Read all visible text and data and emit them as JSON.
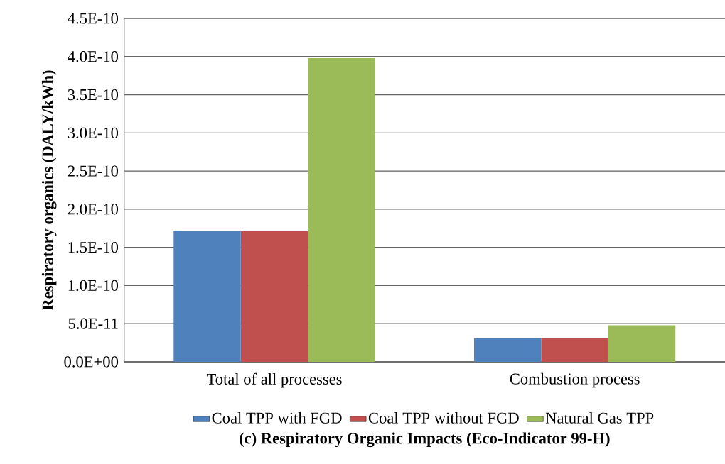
{
  "chart_data": {
    "type": "bar",
    "title": "(c) Respiratory Organic Impacts  (Eco-Indicator 99-H)",
    "ylabel": "Respiratory organics (DALY/kWh)",
    "categories": [
      "Total of all processes",
      "Combustion process"
    ],
    "series": [
      {
        "name": "Coal TPP with FGD",
        "color": "#4f81bd",
        "values": [
          1.72e-10,
          3.1e-11
        ]
      },
      {
        "name": "Coal TPP without FGD",
        "color": "#c0504d",
        "values": [
          1.71e-10,
          3.1e-11
        ]
      },
      {
        "name": "Natural Gas TPP",
        "color": "#9bbb59",
        "values": [
          3.98e-10,
          4.8e-11
        ]
      }
    ],
    "ylim": [
      0,
      4.5e-10
    ],
    "yticks": [
      {
        "value": 0,
        "label": "0.0E+00"
      },
      {
        "value": 5e-11,
        "label": "5.0E-11"
      },
      {
        "value": 1e-10,
        "label": "1.0E-10"
      },
      {
        "value": 1.5e-10,
        "label": "1.5E-10"
      },
      {
        "value": 2e-10,
        "label": "2.0E-10"
      },
      {
        "value": 2.5e-10,
        "label": "2.5E-10"
      },
      {
        "value": 3e-10,
        "label": "3.0E-10"
      },
      {
        "value": 3.5e-10,
        "label": "3.5E-10"
      },
      {
        "value": 4e-10,
        "label": "4.0E-10"
      },
      {
        "value": 4.5e-10,
        "label": "4.5E-10"
      }
    ],
    "grid": "y",
    "legend": "bottom"
  }
}
